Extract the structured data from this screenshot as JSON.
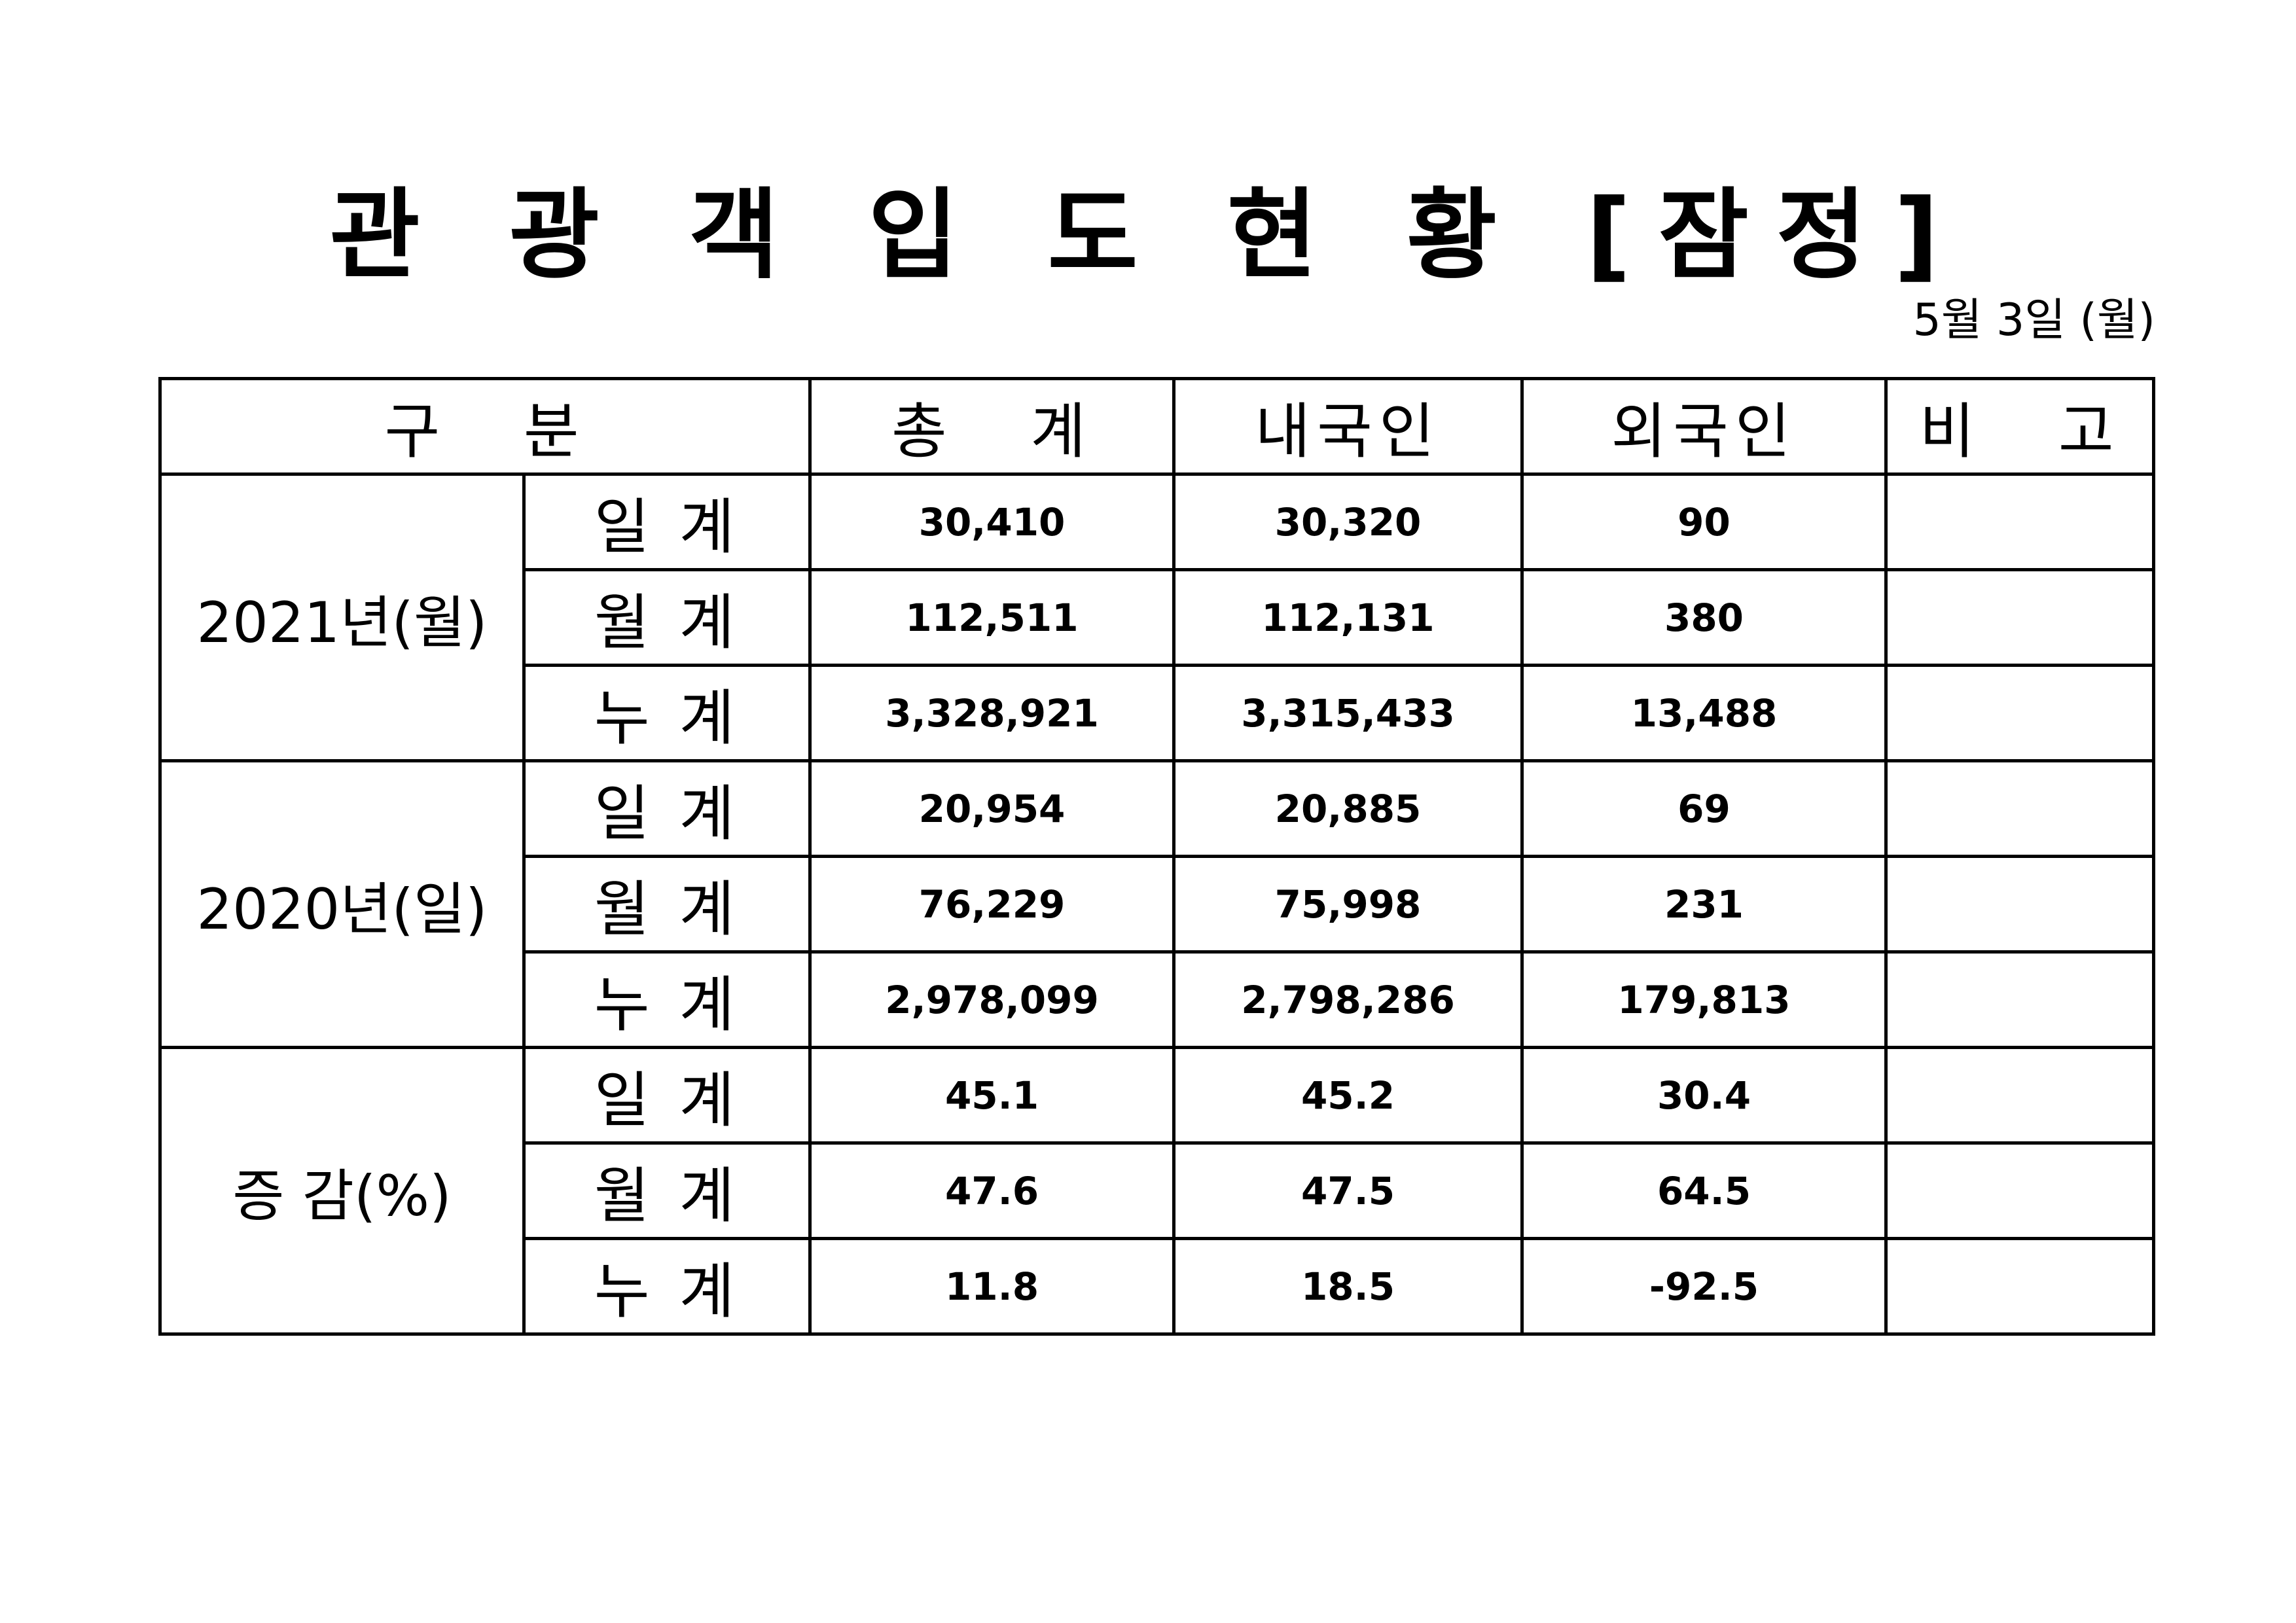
{
  "title": "관 광 객 입 도 현 황 [잠정]",
  "date": "5월 3일 (월)",
  "headers": {
    "category": "구   분",
    "total": "총   계",
    "domestic": "내국인",
    "foreign": "외국인",
    "remarks": "비   고"
  },
  "groups": [
    {
      "label": "2021년(월)",
      "rows": [
        {
          "sub": "일 계",
          "total": "30,410",
          "domestic": "30,320",
          "foreign": "90",
          "remarks": ""
        },
        {
          "sub": "월 계",
          "total": "112,511",
          "domestic": "112,131",
          "foreign": "380",
          "remarks": ""
        },
        {
          "sub": "누 계",
          "total": "3,328,921",
          "domestic": "3,315,433",
          "foreign": "13,488",
          "remarks": ""
        }
      ]
    },
    {
      "label": "2020년(일)",
      "rows": [
        {
          "sub": "일 계",
          "total": "20,954",
          "domestic": "20,885",
          "foreign": "69",
          "remarks": ""
        },
        {
          "sub": "월 계",
          "total": "76,229",
          "domestic": "75,998",
          "foreign": "231",
          "remarks": ""
        },
        {
          "sub": "누 계",
          "total": "2,978,099",
          "domestic": "2,798,286",
          "foreign": "179,813",
          "remarks": ""
        }
      ]
    },
    {
      "label": "증 감(%)",
      "rows": [
        {
          "sub": "일 계",
          "total": "45.1",
          "domestic": "45.2",
          "foreign": "30.4",
          "remarks": ""
        },
        {
          "sub": "월 계",
          "total": "47.6",
          "domestic": "47.5",
          "foreign": "64.5",
          "remarks": ""
        },
        {
          "sub": "누 계",
          "total": "11.8",
          "domestic": "18.5",
          "foreign": "-92.5",
          "remarks": ""
        }
      ]
    }
  ]
}
